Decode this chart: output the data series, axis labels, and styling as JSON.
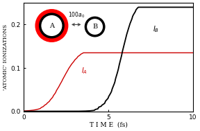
{
  "xlabel": "T I M E  (fs)",
  "ylabel": "'ATOMIC' IONIZATIONS",
  "xlim": [
    0,
    10
  ],
  "ylim": [
    0.0,
    0.25
  ],
  "yticks": [
    0.0,
    0.1,
    0.2
  ],
  "xticks": [
    0,
    5,
    10
  ],
  "background_color": "#ffffff",
  "curve_A_color": "#cc0000",
  "curve_B_color": "#000000",
  "figsize": [
    2.88,
    1.89
  ],
  "dpi": 100,
  "IA_max": 0.125,
  "IA_mid": 2.3,
  "IA_k": 2.2,
  "IB_max": 0.225,
  "IB_mid": 5.8,
  "IB_k": 2.8
}
